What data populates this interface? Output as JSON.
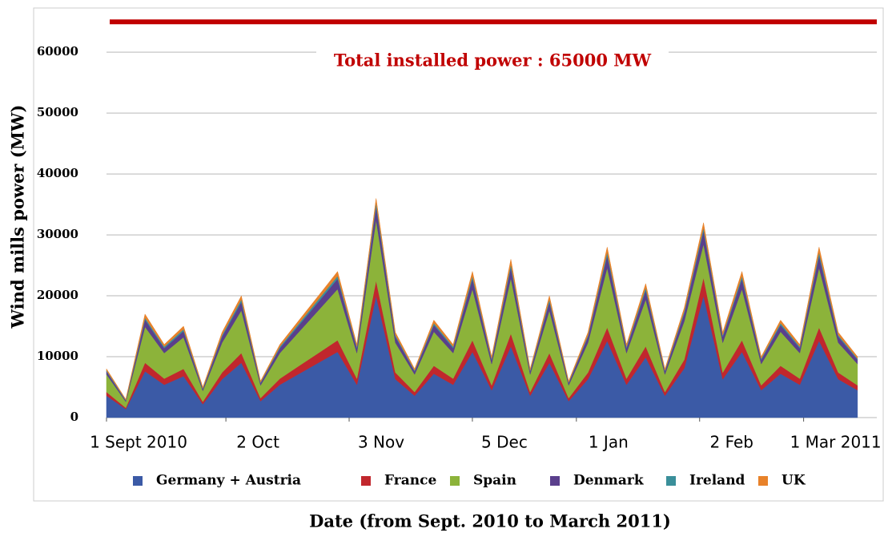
{
  "chart_data": {
    "type": "stacked_area",
    "ylabel": "Wind mills power  (MW)",
    "xlabel": "Date (from Sept. 2010 to  March 2011)",
    "reference": {
      "value": 65000,
      "label": "Total installed power : 65000 MW",
      "color": "#c00000"
    },
    "x": [
      "2010-09-01",
      "2010-09-06",
      "2010-09-11",
      "2010-09-16",
      "2010-09-21",
      "2010-09-26",
      "2010-10-01",
      "2010-10-06",
      "2010-10-11",
      "2010-10-16",
      "2010-10-21",
      "2010-10-26",
      "2010-10-31",
      "2010-11-05",
      "2010-11-10",
      "2010-11-15",
      "2010-11-20",
      "2010-11-25",
      "2010-11-30",
      "2010-12-05",
      "2010-12-10",
      "2010-12-15",
      "2010-12-20",
      "2010-12-25",
      "2010-12-30",
      "2011-01-04",
      "2011-01-09",
      "2011-01-14",
      "2011-01-19",
      "2011-01-24",
      "2011-01-29",
      "2011-02-03",
      "2011-02-08",
      "2011-02-13",
      "2011-02-18",
      "2011-02-23",
      "2011-02-28",
      "2011-03-05",
      "2011-03-10",
      "2011-03-15"
    ],
    "xlim": [
      "2010-09-01",
      "2011-03-20"
    ],
    "xticks": [
      {
        "value": "2010-09-01",
        "label": "1 Sept 2010"
      },
      {
        "value": "2010-10-02",
        "label": "2 Oct"
      },
      {
        "value": "2010-11-03",
        "label": "3 Nov"
      },
      {
        "value": "2010-12-05",
        "label": "5 Dec"
      },
      {
        "value": "2011-01-01",
        "label": "1 Jan"
      },
      {
        "value": "2011-02-02",
        "label": "2 Feb"
      },
      {
        "value": "2011-03-01",
        "label": "1 Mar 2011"
      }
    ],
    "ylim": [
      0,
      67000
    ],
    "yticks": [
      0,
      10000,
      20000,
      30000,
      40000,
      50000,
      60000
    ],
    "grid": true,
    "series": [
      {
        "name": "Germany + Austria",
        "color": "#3b5aa6",
        "values": [
          3600,
          1400,
          7600,
          5400,
          6800,
          2200,
          6300,
          9000,
          2700,
          5400,
          7200,
          9000,
          10800,
          5400,
          20000,
          6300,
          3600,
          7200,
          5400,
          10800,
          4500,
          11700,
          3600,
          9000,
          2700,
          6300,
          12600,
          5400,
          9900,
          3600,
          8100,
          20000,
          6300,
          10800,
          4500,
          7200,
          5400,
          12600,
          6300,
          4500
        ]
      },
      {
        "name": "France",
        "color": "#c1272d",
        "values": [
          600,
          200,
          1400,
          1000,
          1200,
          400,
          1100,
          1600,
          500,
          1000,
          1300,
          1600,
          1900,
          1000,
          2500,
          1100,
          600,
          1300,
          1000,
          1900,
          800,
          2100,
          600,
          1600,
          500,
          1100,
          2200,
          1000,
          1800,
          600,
          1400,
          3000,
          1100,
          1900,
          800,
          1300,
          1000,
          2200,
          1100,
          800
        ]
      },
      {
        "name": "Spain",
        "color": "#8cb33a",
        "values": [
          2900,
          1000,
          5900,
          4200,
          5200,
          1800,
          4900,
          7000,
          2100,
          4200,
          5600,
          7000,
          8400,
          4200,
          10000,
          4900,
          2900,
          5600,
          4200,
          8400,
          3500,
          9100,
          2900,
          7000,
          2100,
          4900,
          9800,
          4200,
          7700,
          2900,
          6300,
          5500,
          4900,
          8400,
          3500,
          5600,
          4200,
          9800,
          4900,
          3500
        ]
      },
      {
        "name": "Denmark",
        "color": "#5a3f8c",
        "values": [
          500,
          200,
          1200,
          800,
          1000,
          300,
          1000,
          1400,
          400,
          800,
          1100,
          1400,
          1700,
          800,
          2200,
          1000,
          500,
          1100,
          800,
          1700,
          700,
          1800,
          500,
          1400,
          400,
          1000,
          2000,
          800,
          1500,
          500,
          1300,
          2200,
          1000,
          1700,
          700,
          1100,
          800,
          2000,
          1000,
          700
        ]
      },
      {
        "name": "Ireland",
        "color": "#3a8f9a",
        "values": [
          150,
          80,
          300,
          250,
          300,
          100,
          250,
          400,
          100,
          250,
          300,
          400,
          450,
          250,
          600,
          250,
          150,
          300,
          250,
          450,
          200,
          500,
          150,
          400,
          100,
          250,
          550,
          250,
          450,
          150,
          350,
          500,
          250,
          450,
          200,
          300,
          250,
          550,
          250,
          200
        ]
      },
      {
        "name": "UK",
        "color": "#e8822a",
        "values": [
          250,
          120,
          600,
          350,
          500,
          200,
          450,
          600,
          200,
          350,
          500,
          600,
          750,
          350,
          700,
          450,
          250,
          500,
          350,
          750,
          300,
          800,
          250,
          600,
          200,
          450,
          850,
          350,
          650,
          250,
          550,
          800,
          450,
          750,
          300,
          500,
          350,
          850,
          450,
          300
        ]
      }
    ]
  }
}
